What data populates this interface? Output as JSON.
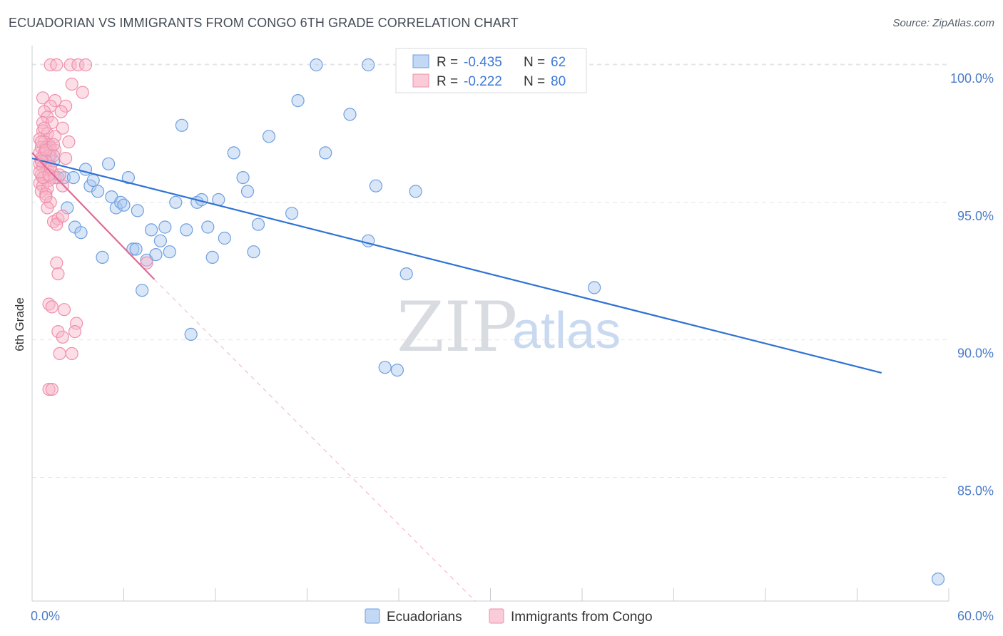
{
  "header": {
    "title": "ECUADORIAN VS IMMIGRANTS FROM CONGO 6TH GRADE CORRELATION CHART",
    "source": "Source: ZipAtlas.com"
  },
  "watermark": {
    "zip": "ZIP",
    "atlas": "atlas"
  },
  "legend": {
    "rows": [
      {
        "r_label": "R =",
        "r_value": "-0.435",
        "n_label": "N =",
        "n_value": "62",
        "color": "#a9c8f0"
      },
      {
        "r_label": "R =",
        "r_value": "-0.222",
        "n_label": "N =",
        "n_value": "80",
        "color": "#f8b6c8"
      }
    ]
  },
  "chart_data": {
    "type": "scatter",
    "title": "ECUADORIAN VS IMMIGRANTS FROM CONGO 6TH GRADE CORRELATION CHART",
    "xlabel": "",
    "ylabel": "6th Grade",
    "xlim": [
      0,
      60
    ],
    "ylim": [
      80.5,
      100.7
    ],
    "x_tick_labels": [
      "0.0%",
      "60.0%"
    ],
    "y_ticks": [
      85,
      90,
      95,
      100
    ],
    "y_tick_labels": [
      "85.0%",
      "90.0%",
      "95.0%",
      "100.0%"
    ],
    "grid": true,
    "legend_position": "bottom",
    "series": [
      {
        "name": "Ecuadorians",
        "color": "#6f9fe0",
        "fill": "#a9c8f0",
        "line_color": "#2f72d4",
        "trend": {
          "x": [
            0,
            55.6
          ],
          "y": [
            96.6,
            88.8
          ]
        },
        "points": [
          [
            1.2,
            96.7
          ],
          [
            1.4,
            96.5
          ],
          [
            1.2,
            96.9
          ],
          [
            1.7,
            95.9
          ],
          [
            2.1,
            95.9
          ],
          [
            2.3,
            94.8
          ],
          [
            2.8,
            94.1
          ],
          [
            3.2,
            93.9
          ],
          [
            3.5,
            96.2
          ],
          [
            3.8,
            95.6
          ],
          [
            4.0,
            95.8
          ],
          [
            4.3,
            95.4
          ],
          [
            4.6,
            93.0
          ],
          [
            5.0,
            96.4
          ],
          [
            5.2,
            95.2
          ],
          [
            5.5,
            94.8
          ],
          [
            5.8,
            95.0
          ],
          [
            6.0,
            94.9
          ],
          [
            6.3,
            95.9
          ],
          [
            6.6,
            93.3
          ],
          [
            6.9,
            94.7
          ],
          [
            7.2,
            91.8
          ],
          [
            7.5,
            92.9
          ],
          [
            7.8,
            94.0
          ],
          [
            8.1,
            93.1
          ],
          [
            8.4,
            93.6
          ],
          [
            8.7,
            94.1
          ],
          [
            9.0,
            93.2
          ],
          [
            9.4,
            95.0
          ],
          [
            9.8,
            97.8
          ],
          [
            10.1,
            94.0
          ],
          [
            10.4,
            90.2
          ],
          [
            10.8,
            95.0
          ],
          [
            11.1,
            95.1
          ],
          [
            11.5,
            94.1
          ],
          [
            11.8,
            93.0
          ],
          [
            12.2,
            95.1
          ],
          [
            12.6,
            93.7
          ],
          [
            13.2,
            96.8
          ],
          [
            13.8,
            95.9
          ],
          [
            14.1,
            95.4
          ],
          [
            14.5,
            93.2
          ],
          [
            14.8,
            94.2
          ],
          [
            15.5,
            97.4
          ],
          [
            17.0,
            94.6
          ],
          [
            17.4,
            98.7
          ],
          [
            18.6,
            100.0
          ],
          [
            19.2,
            96.8
          ],
          [
            20.8,
            98.2
          ],
          [
            22.0,
            100.0
          ],
          [
            22.0,
            93.6
          ],
          [
            22.5,
            95.6
          ],
          [
            23.1,
            89.0
          ],
          [
            23.9,
            88.9
          ],
          [
            24.5,
            92.4
          ],
          [
            25.1,
            95.4
          ],
          [
            36.8,
            91.9
          ],
          [
            59.3,
            81.3
          ],
          [
            1.0,
            97.0
          ],
          [
            2.7,
            95.9
          ],
          [
            6.8,
            93.3
          ],
          [
            0.9,
            96.8
          ]
        ]
      },
      {
        "name": "Immigrants from Congo",
        "color": "#ef8fad",
        "fill": "#f8b6c8",
        "line_color": "#e06a93",
        "trend": {
          "x": [
            0,
            8.0
          ],
          "y": [
            96.8,
            92.2
          ]
        },
        "trend_ext": {
          "x": [
            8.0,
            29.0
          ],
          "y": [
            92.2,
            80.5
          ]
        },
        "points": [
          [
            1.2,
            100.0
          ],
          [
            1.6,
            100.0
          ],
          [
            2.5,
            100.0
          ],
          [
            3.0,
            100.0
          ],
          [
            3.5,
            100.0
          ],
          [
            2.6,
            99.3
          ],
          [
            3.3,
            99.0
          ],
          [
            0.7,
            98.8
          ],
          [
            1.5,
            98.7
          ],
          [
            1.2,
            98.5
          ],
          [
            2.2,
            98.5
          ],
          [
            0.8,
            98.3
          ],
          [
            1.0,
            98.1
          ],
          [
            0.7,
            97.9
          ],
          [
            1.3,
            97.9
          ],
          [
            2.0,
            97.7
          ],
          [
            0.7,
            97.6
          ],
          [
            1.0,
            97.5
          ],
          [
            1.5,
            97.4
          ],
          [
            0.5,
            97.3
          ],
          [
            0.8,
            97.2
          ],
          [
            1.1,
            97.1
          ],
          [
            0.6,
            97.0
          ],
          [
            0.9,
            97.0
          ],
          [
            1.2,
            97.0
          ],
          [
            1.5,
            96.9
          ],
          [
            0.5,
            96.8
          ],
          [
            0.8,
            96.8
          ],
          [
            1.1,
            96.7
          ],
          [
            1.4,
            96.7
          ],
          [
            0.6,
            96.6
          ],
          [
            0.9,
            96.5
          ],
          [
            0.5,
            96.4
          ],
          [
            0.7,
            96.3
          ],
          [
            1.0,
            96.2
          ],
          [
            1.3,
            96.1
          ],
          [
            0.6,
            96.0
          ],
          [
            0.8,
            95.9
          ],
          [
            1.1,
            95.8
          ],
          [
            0.5,
            95.7
          ],
          [
            0.7,
            95.6
          ],
          [
            1.0,
            95.5
          ],
          [
            0.6,
            95.4
          ],
          [
            0.9,
            95.3
          ],
          [
            1.2,
            95.0
          ],
          [
            1.5,
            95.9
          ],
          [
            1.8,
            96.0
          ],
          [
            2.0,
            95.6
          ],
          [
            1.4,
            94.3
          ],
          [
            1.7,
            94.4
          ],
          [
            1.6,
            94.2
          ],
          [
            2.0,
            94.5
          ],
          [
            1.6,
            92.8
          ],
          [
            1.7,
            92.4
          ],
          [
            1.1,
            91.3
          ],
          [
            1.3,
            91.2
          ],
          [
            2.1,
            91.1
          ],
          [
            1.7,
            90.3
          ],
          [
            2.0,
            90.1
          ],
          [
            2.9,
            90.6
          ],
          [
            2.8,
            90.3
          ],
          [
            1.8,
            89.5
          ],
          [
            2.6,
            89.5
          ],
          [
            1.1,
            88.2
          ],
          [
            1.3,
            88.2
          ],
          [
            7.5,
            92.8
          ],
          [
            0.6,
            97.2
          ],
          [
            0.9,
            96.9
          ],
          [
            1.2,
            96.3
          ],
          [
            0.7,
            95.9
          ],
          [
            1.0,
            94.8
          ],
          [
            2.4,
            97.2
          ],
          [
            2.2,
            96.6
          ],
          [
            0.5,
            96.1
          ],
          [
            0.8,
            97.7
          ],
          [
            1.9,
            98.3
          ],
          [
            1.4,
            97.1
          ],
          [
            0.6,
            96.5
          ],
          [
            1.1,
            96.0
          ],
          [
            0.9,
            95.2
          ]
        ]
      }
    ]
  }
}
